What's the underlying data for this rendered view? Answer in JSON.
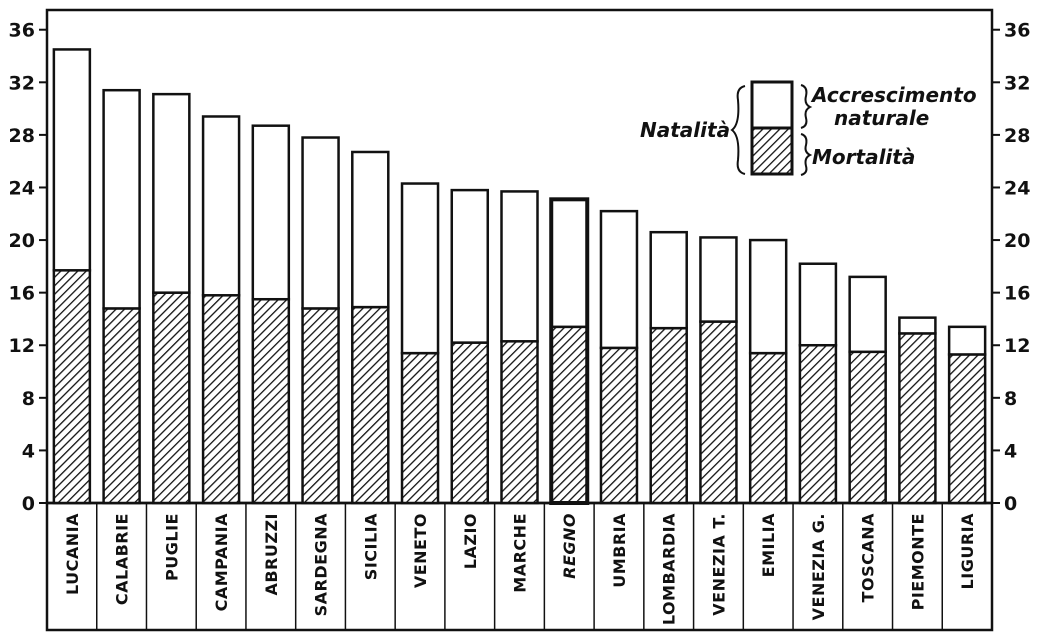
{
  "chart_data": {
    "type": "bar",
    "stacked": true,
    "categories": [
      "LUCANIA",
      "CALABRIE",
      "PUGLIE",
      "CAMPANIA",
      "ABRUZZI",
      "SARDEGNA",
      "SICILIA",
      "VENETO",
      "LAZIO",
      "MARCHE",
      "REGNO",
      "UMBRIA",
      "LOMBARDIA",
      "VENEZIA T.",
      "EMILIA",
      "VENEZIA G.",
      "TOSCANA",
      "PIEMONTE",
      "LIGURIA"
    ],
    "series": [
      {
        "name": "Mortalità",
        "fill": "hatched",
        "values": [
          17.7,
          14.8,
          16.0,
          15.8,
          15.5,
          14.8,
          14.9,
          11.4,
          12.2,
          12.3,
          13.4,
          11.8,
          13.3,
          13.8,
          11.4,
          12.0,
          11.5,
          12.9,
          11.3
        ]
      },
      {
        "name": "Accrescimento naturale",
        "fill": "white",
        "values": [
          16.8,
          16.6,
          15.1,
          13.6,
          13.2,
          13.0,
          11.8,
          12.9,
          11.6,
          11.4,
          9.7,
          10.4,
          7.3,
          6.4,
          8.6,
          6.2,
          5.7,
          1.2,
          2.1
        ]
      }
    ],
    "totals_label": "Natalità",
    "ylim": [
      0,
      37.5
    ],
    "yticks": [
      0,
      4,
      8,
      12,
      16,
      20,
      24,
      28,
      32,
      36
    ],
    "xlabel": "",
    "ylabel": "",
    "title": "",
    "grid": false,
    "legend_position": "top-right",
    "highlight_category": "REGNO"
  },
  "legend": {
    "group_label": "Natalità",
    "top_label_line1": "Accrescimento",
    "top_label_line2": "naturale",
    "bottom_label": "Mortalità"
  },
  "colors": {
    "ink": "#111111",
    "paper": "#ffffff"
  }
}
